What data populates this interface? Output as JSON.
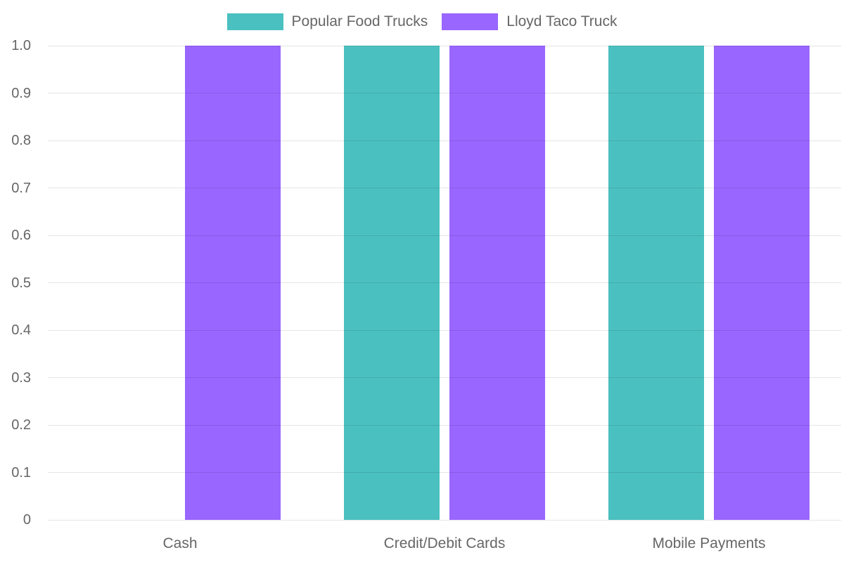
{
  "chart": {
    "background_color": "#ffffff",
    "text_color": "#666666",
    "grid_color": "rgba(0,0,0,0.10)"
  },
  "legend": {
    "items": [
      {
        "label": "Popular Food Trucks",
        "color": "#4BC0C0"
      },
      {
        "label": "Lloyd Taco Truck",
        "color": "#9966FF"
      }
    ]
  },
  "chart_data": {
    "type": "bar",
    "title": "",
    "xlabel": "",
    "ylabel": "",
    "categories": [
      "Cash",
      "Credit/Debit Cards",
      "Mobile Payments"
    ],
    "series": [
      {
        "name": "Popular Food Trucks",
        "color": "#4BC0C0",
        "values": [
          0,
          1.0,
          1.0
        ]
      },
      {
        "name": "Lloyd Taco Truck",
        "color": "#9966FF",
        "values": [
          1.0,
          1.0,
          1.0
        ]
      }
    ],
    "ylim": [
      0,
      1.0
    ],
    "yticks": [
      "1.0",
      "0.9",
      "0.8",
      "0.7",
      "0.6",
      "0.5",
      "0.4",
      "0.3",
      "0.2",
      "0.1",
      "0"
    ],
    "grid": "horizontal",
    "legend_position": "top"
  }
}
